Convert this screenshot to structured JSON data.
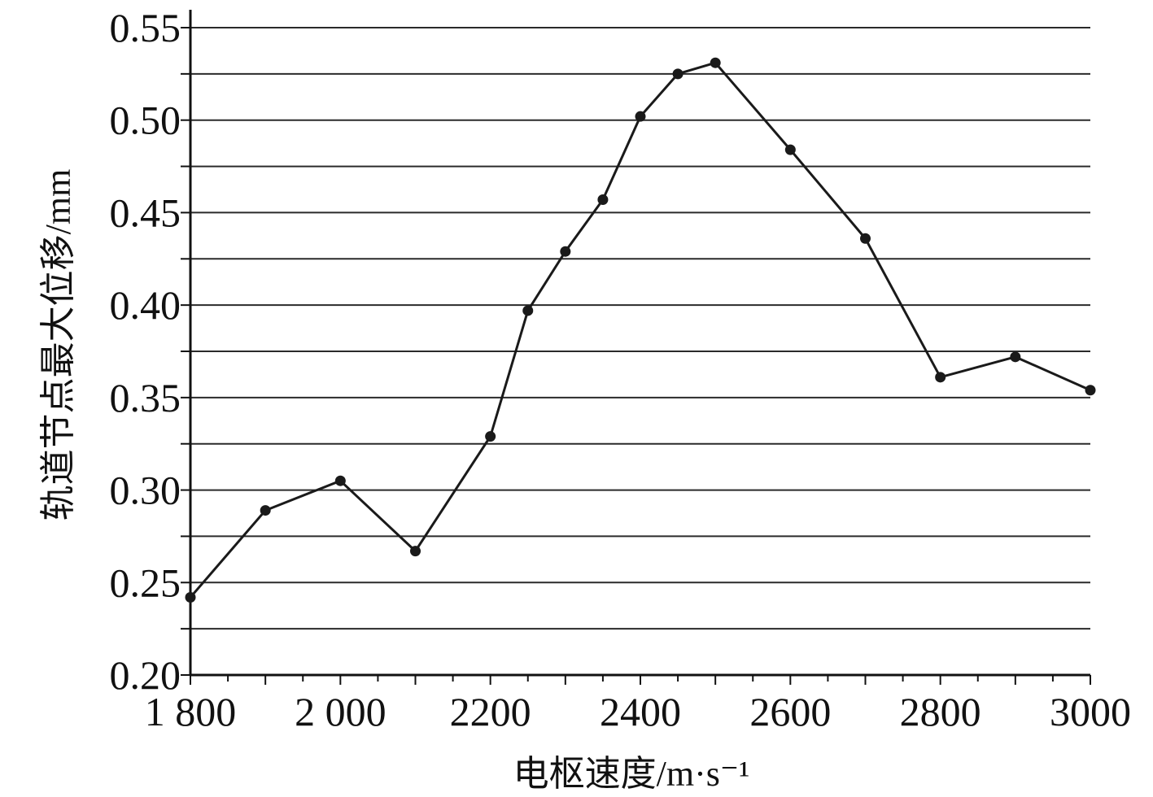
{
  "chart_data": {
    "type": "line",
    "xlabel": "电枢速度/m·s⁻¹",
    "ylabel": "轨道节点最大位移/mm",
    "xlim": [
      1800,
      3000
    ],
    "ylim": [
      0.2,
      0.55
    ],
    "x_ticks": [
      {
        "value": 1800,
        "label": "1 800"
      },
      {
        "value": 2000,
        "label": "2 000"
      },
      {
        "value": 2200,
        "label": "2200"
      },
      {
        "value": 2400,
        "label": "2400"
      },
      {
        "value": 2600,
        "label": "2600"
      },
      {
        "value": 2800,
        "label": "2800"
      },
      {
        "value": 3000,
        "label": "3000"
      }
    ],
    "x_minor_step": 50,
    "y_ticks": [
      {
        "value": 0.2,
        "label": "0.20"
      },
      {
        "value": 0.25,
        "label": "0.25"
      },
      {
        "value": 0.3,
        "label": "0.30"
      },
      {
        "value": 0.35,
        "label": "0.35"
      },
      {
        "value": 0.4,
        "label": "0.40"
      },
      {
        "value": 0.45,
        "label": "0.45"
      },
      {
        "value": 0.5,
        "label": "0.50"
      },
      {
        "value": 0.55,
        "label": "0.55"
      }
    ],
    "y_grid_step": 0.025,
    "grid": true,
    "legend": "none",
    "series": [
      {
        "color": "#1a1a1a",
        "points": [
          {
            "x": 1800,
            "y": 0.242
          },
          {
            "x": 1900,
            "y": 0.289
          },
          {
            "x": 2000,
            "y": 0.305
          },
          {
            "x": 2100,
            "y": 0.267
          },
          {
            "x": 2200,
            "y": 0.329
          },
          {
            "x": 2250,
            "y": 0.397
          },
          {
            "x": 2300,
            "y": 0.429
          },
          {
            "x": 2350,
            "y": 0.457
          },
          {
            "x": 2400,
            "y": 0.502
          },
          {
            "x": 2450,
            "y": 0.525
          },
          {
            "x": 2500,
            "y": 0.531
          },
          {
            "x": 2600,
            "y": 0.484
          },
          {
            "x": 2700,
            "y": 0.436
          },
          {
            "x": 2800,
            "y": 0.361
          },
          {
            "x": 2900,
            "y": 0.372
          },
          {
            "x": 3000,
            "y": 0.354
          }
        ]
      }
    ]
  }
}
